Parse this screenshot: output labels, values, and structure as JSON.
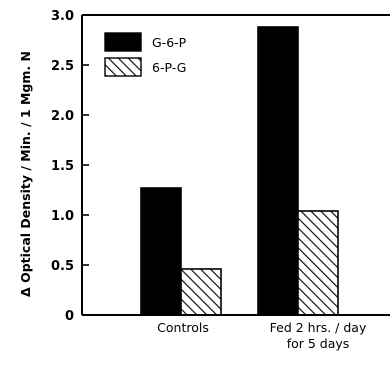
{
  "chart_data": {
    "type": "bar",
    "ylabel": "Δ Optical Density / Min. / 1 Mgm. N",
    "ylim": [
      0,
      3.0
    ],
    "yticks": [
      0,
      0.5,
      1.0,
      1.5,
      2.0,
      2.5,
      3.0
    ],
    "ytick_labels": [
      "0",
      "0.5",
      "1.0",
      "1.5",
      "2.0",
      "2.5",
      "3.0"
    ],
    "categories": [
      [
        "Controls"
      ],
      [
        "Fed  2 hrs. / day",
        "for 5 days"
      ]
    ],
    "series": [
      {
        "name": "G-6-P",
        "fill": "solid",
        "color": "#000000",
        "values": [
          1.27,
          2.88
        ]
      },
      {
        "name": "6-P-G",
        "fill": "hatched",
        "color": "#000000",
        "values": [
          0.46,
          1.04
        ]
      }
    ],
    "legend_position": "top-left",
    "grid": false
  }
}
